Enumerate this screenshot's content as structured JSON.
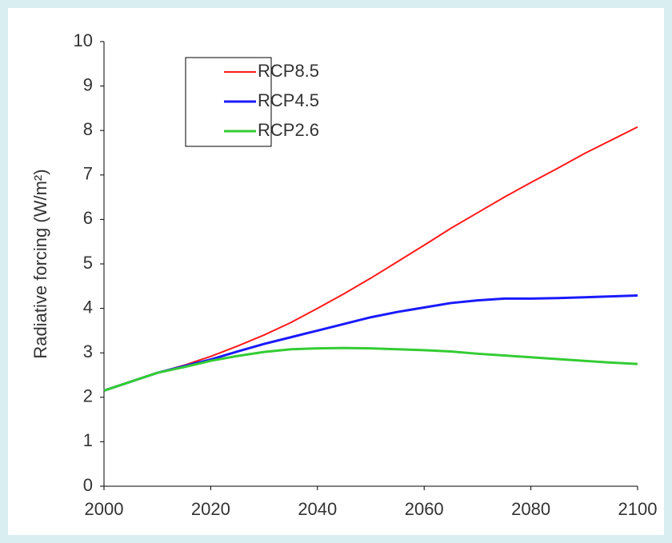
{
  "chart_data": {
    "type": "line",
    "y_label": "Radiative forcing (W/m²)",
    "x": [
      2000,
      2005,
      2010,
      2015,
      2020,
      2025,
      2030,
      2035,
      2040,
      2045,
      2050,
      2055,
      2060,
      2065,
      2070,
      2075,
      2080,
      2085,
      2090,
      2095,
      2100
    ],
    "series": [
      {
        "name": "RCP8.5",
        "color": "#ff1a1a",
        "width": 2,
        "values": [
          2.15,
          2.35,
          2.55,
          2.72,
          2.92,
          3.15,
          3.4,
          3.68,
          4.0,
          4.33,
          4.68,
          5.05,
          5.42,
          5.8,
          6.15,
          6.5,
          6.83,
          7.15,
          7.48,
          7.78,
          8.08
        ]
      },
      {
        "name": "RCP4.5",
        "color": "#1a1aff",
        "width": 3,
        "values": [
          2.15,
          2.35,
          2.55,
          2.7,
          2.85,
          3.03,
          3.2,
          3.35,
          3.5,
          3.65,
          3.8,
          3.92,
          4.02,
          4.12,
          4.18,
          4.22,
          4.22,
          4.23,
          4.25,
          4.27,
          4.29
        ]
      },
      {
        "name": "RCP2.6",
        "color": "#33cc33",
        "width": 3,
        "values": [
          2.15,
          2.35,
          2.55,
          2.68,
          2.82,
          2.93,
          3.02,
          3.08,
          3.1,
          3.11,
          3.1,
          3.08,
          3.06,
          3.03,
          2.98,
          2.94,
          2.9,
          2.86,
          2.82,
          2.78,
          2.75
        ]
      }
    ],
    "xlim": [
      2000,
      2100
    ],
    "xticks": [
      2000,
      2020,
      2040,
      2060,
      2080,
      2100
    ],
    "ylim": [
      0,
      10
    ],
    "yticks": [
      0,
      1,
      2,
      3,
      4,
      5,
      6,
      7,
      8,
      9,
      10
    ],
    "legend": "top-left"
  }
}
